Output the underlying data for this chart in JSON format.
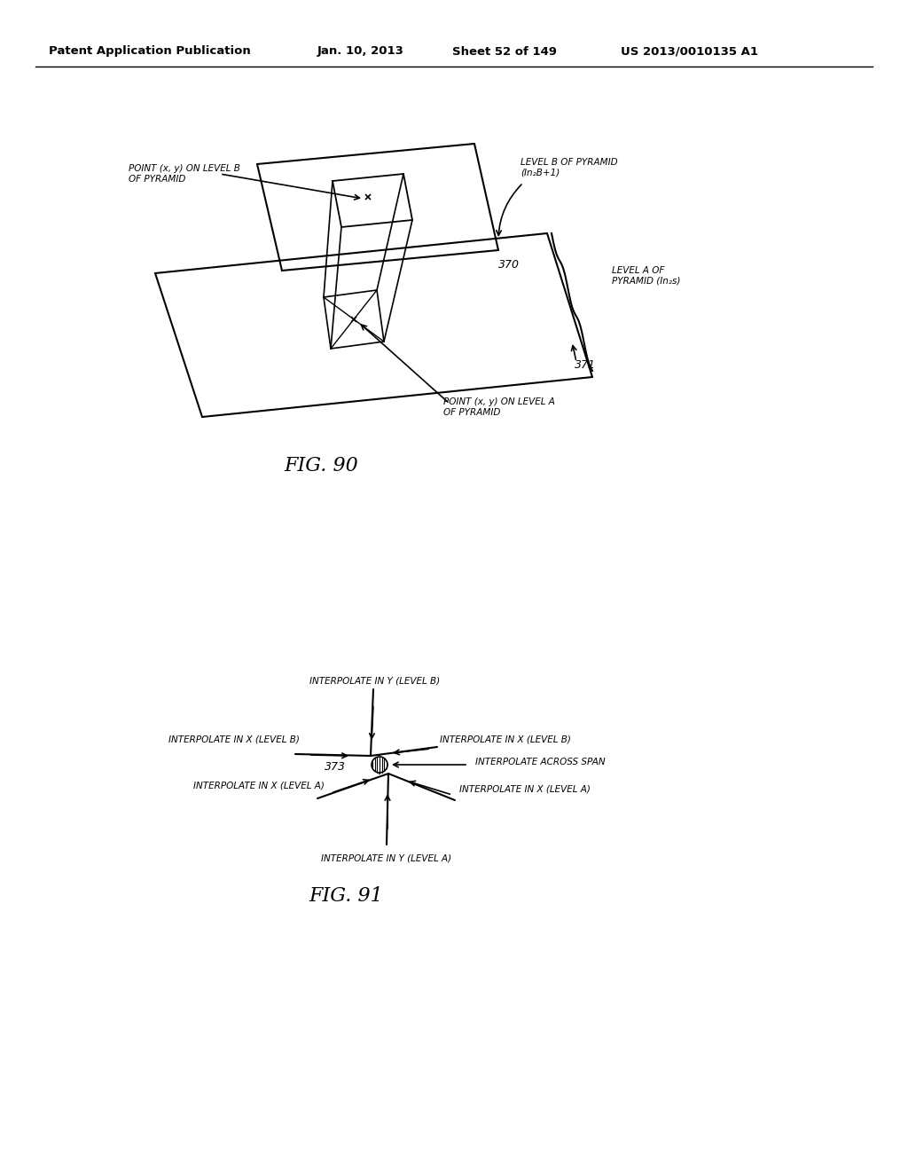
{
  "bg_color": "#ffffff",
  "header_text": "Patent Application Publication",
  "header_date": "Jan. 10, 2013",
  "header_sheet": "Sheet 52 of 149",
  "header_patent": "US 2013/0010135 A1",
  "fig90_label": "FIG. 90",
  "fig91_label": "FIG. 91",
  "fig90_annotations": {
    "point_xy_level_b": "POINT (x, y) ON LEVEL B\nOF PYRAMID",
    "level_b_pyramid": "LEVEL B OF PYRAMID\n(In₂B+1)",
    "label_370": "370",
    "level_a_pyramid": "LEVEL A OF\nPYRAMID (In₂s)",
    "label_371": "371",
    "point_xy_level_a": "POINT (x, y) ON LEVEL A\nOF PYRAMID"
  },
  "fig91_annotations": {
    "interp_y_b_top": "INTERPOLATE IN Y (LEVEL B)",
    "interp_x_b_left": "INTERPOLATE IN X (LEVEL B)",
    "interp_x_b_right": "INTERPOLATE IN X (LEVEL B)",
    "interp_across_span": "INTERPOLATE ACROSS SPAN",
    "interp_x_a_left": "INTERPOLATE IN X (LEVEL A)",
    "interp_x_a_right": "INTERPOLATE IN X (LEVEL A)",
    "interp_y_a_bottom": "INTERPOLATE IN Y (LEVEL A)",
    "label_373": "373"
  }
}
